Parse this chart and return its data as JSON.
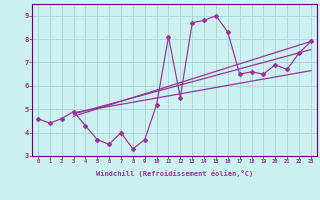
{
  "xlabel": "Windchill (Refroidissement éolien,°C)",
  "bg_color": "#cdf0f0",
  "grid_color": "#aad8d8",
  "line_color": "#993399",
  "x_data": [
    0,
    1,
    2,
    3,
    4,
    5,
    6,
    7,
    8,
    9,
    10,
    11,
    12,
    13,
    14,
    15,
    16,
    17,
    18,
    19,
    20,
    21,
    22,
    23
  ],
  "y_data": [
    4.6,
    4.4,
    4.6,
    4.9,
    4.3,
    3.7,
    3.5,
    4.0,
    3.3,
    3.7,
    5.2,
    8.1,
    5.5,
    8.7,
    8.8,
    9.0,
    8.3,
    6.5,
    6.6,
    6.5,
    6.9,
    6.7,
    7.4,
    7.9
  ],
  "reg_lines": [
    {
      "x0": 3.0,
      "y0": 4.7,
      "x1": 23.0,
      "y1": 7.9
    },
    {
      "x0": 3.0,
      "y0": 4.8,
      "x1": 23.0,
      "y1": 7.55
    },
    {
      "x0": 3.0,
      "y0": 4.85,
      "x1": 23.0,
      "y1": 6.65
    }
  ],
  "xlim": [
    0,
    23
  ],
  "ylim": [
    3.0,
    9.5
  ],
  "yticks": [
    3,
    4,
    5,
    6,
    7,
    8,
    9
  ],
  "xticks": [
    0,
    1,
    2,
    3,
    4,
    5,
    6,
    7,
    8,
    9,
    10,
    11,
    12,
    13,
    14,
    15,
    16,
    17,
    18,
    19,
    20,
    21,
    22,
    23
  ],
  "spine_color": "#660066"
}
